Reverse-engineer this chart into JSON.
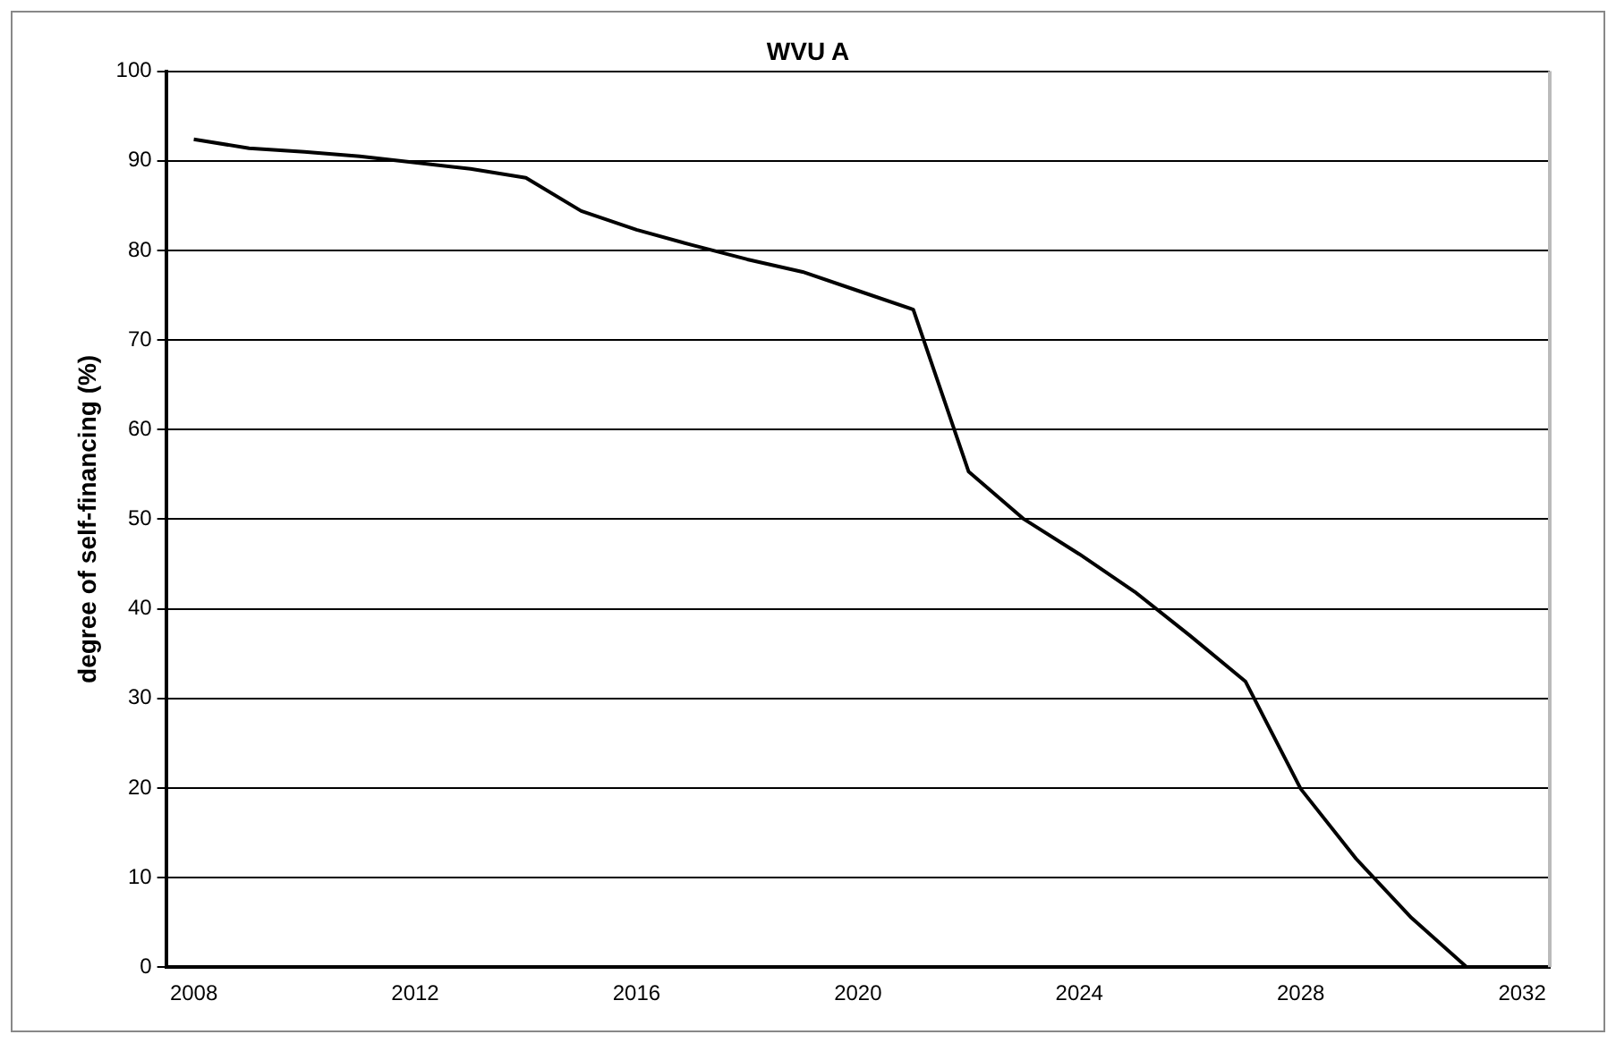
{
  "chart_data": {
    "type": "line",
    "title": "WVU A",
    "ylabel": "degree of self-financing (%)",
    "categories": [
      "2008",
      null,
      null,
      null,
      "2012",
      null,
      null,
      null,
      "2016",
      null,
      null,
      null,
      "2020",
      null,
      null,
      null,
      "2024",
      null,
      null,
      null,
      "2028",
      null,
      null,
      null,
      "2032"
    ],
    "series": [
      {
        "color": "#000000",
        "values": [
          92.4,
          91.4,
          91.0,
          90.5,
          89.8,
          89.1,
          88.1,
          84.4,
          82.3,
          80.6,
          79.0,
          77.6,
          75.5,
          73.4,
          55.3,
          50.0,
          46.1,
          41.9,
          37.0,
          31.9,
          19.9,
          12.1,
          5.5,
          0,
          null
        ]
      }
    ],
    "ylim": [
      0,
      100
    ],
    "yticks": [
      0,
      10,
      20,
      30,
      40,
      50,
      60,
      70,
      80,
      90,
      100
    ],
    "grid": "y",
    "legend": false,
    "marker": "none",
    "line_style": "solid"
  }
}
